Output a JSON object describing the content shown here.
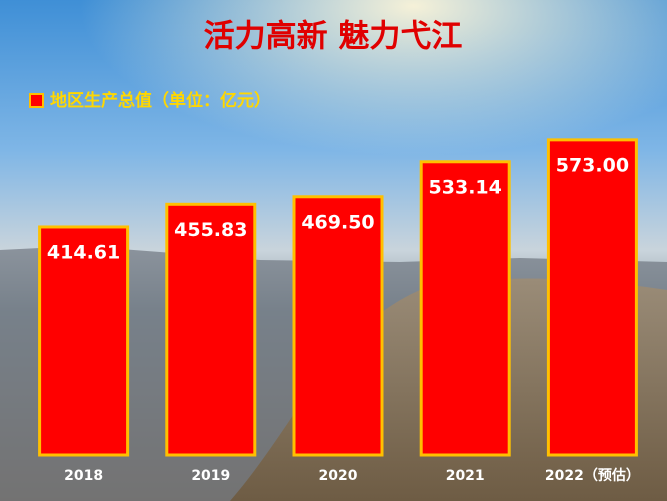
{
  "chart_data": {
    "type": "bar",
    "title": "活力高新 魅力弋江",
    "categories": [
      "2018",
      "2019",
      "2020",
      "2021",
      "2022（预估）"
    ],
    "series": [
      {
        "name": "地区生产总值（单位：亿元）",
        "color": "#ff0000",
        "values": [
          414.61,
          455.83,
          469.5,
          533.14,
          573
        ],
        "value_labels": [
          "414.61",
          "455.83",
          "469.50",
          "533.14",
          "573.00"
        ]
      }
    ],
    "ylim": [
      0,
      600
    ]
  }
}
